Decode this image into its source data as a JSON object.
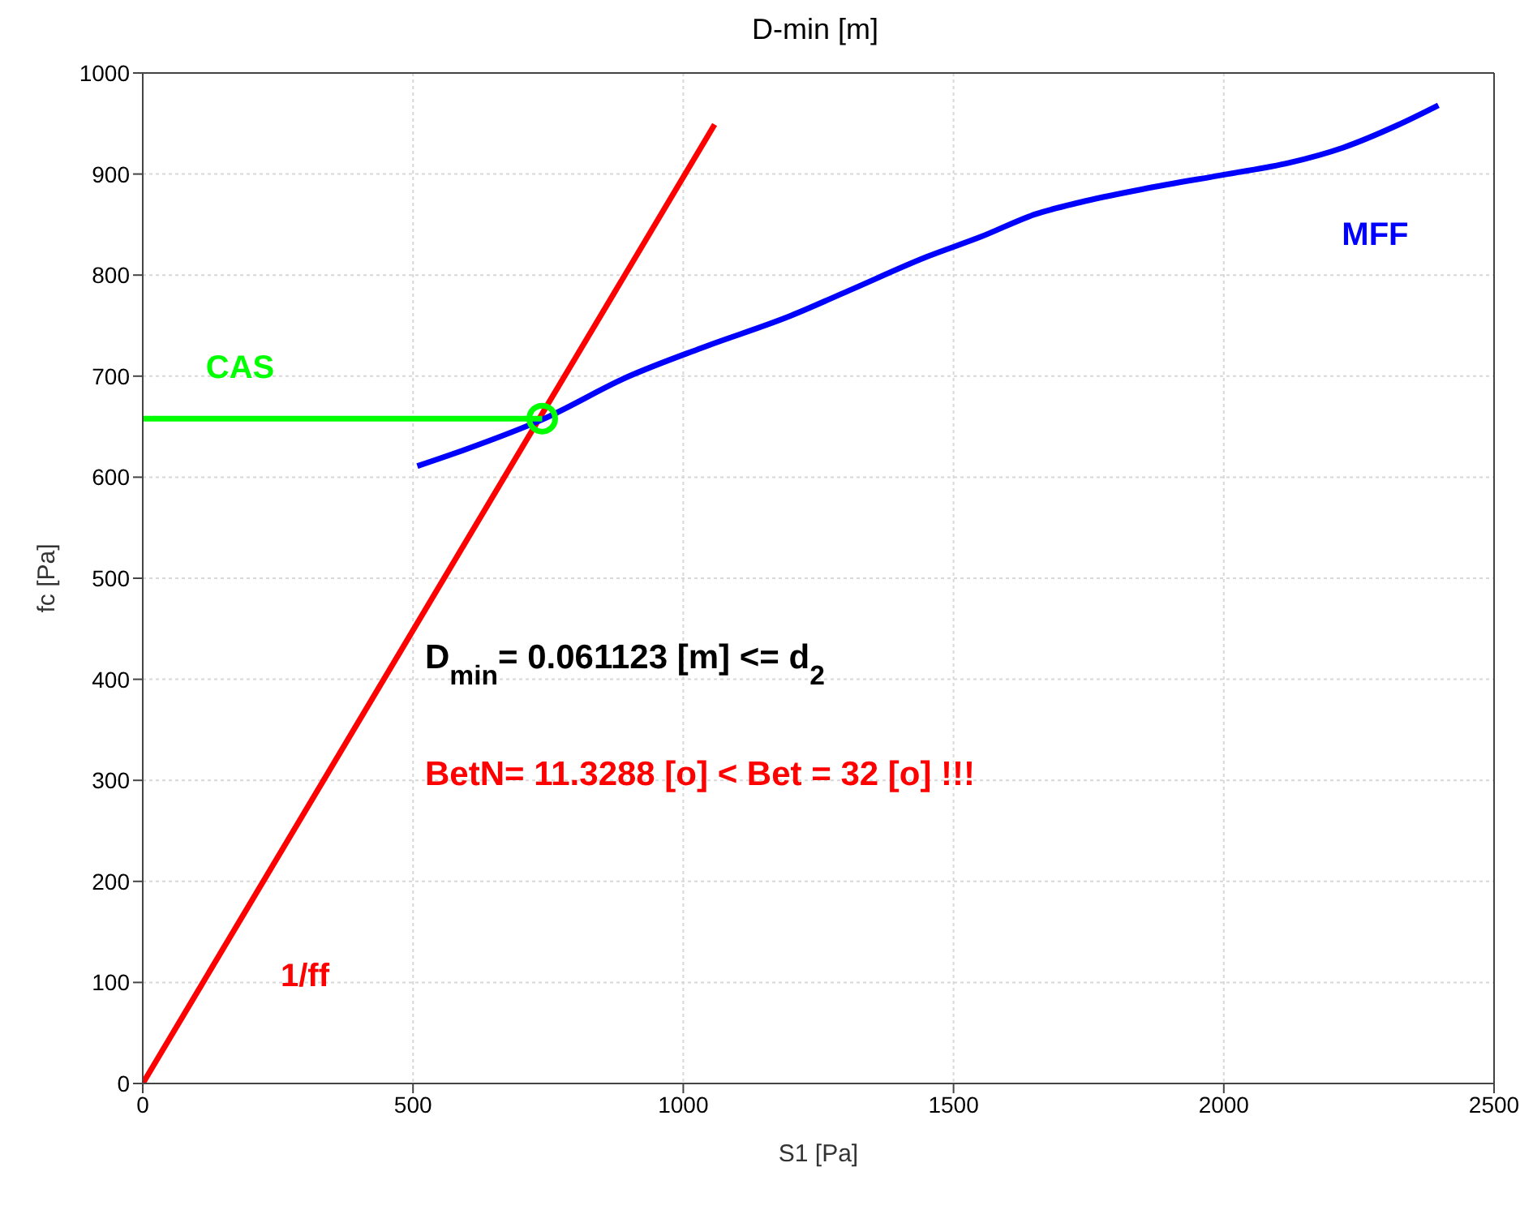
{
  "chart_data": {
    "type": "line",
    "title": "D-min [m]",
    "xlabel": "S1 [Pa]",
    "ylabel": "fc [Pa]",
    "xlim": [
      0,
      2500
    ],
    "xticks": [
      0,
      500,
      1000,
      1500,
      2000,
      2500
    ],
    "ylim": [
      0,
      1000
    ],
    "yticks": [
      0,
      100,
      200,
      300,
      400,
      500,
      600,
      700,
      800,
      900,
      1000
    ],
    "grid": true,
    "marker": "none",
    "series": [
      {
        "name": "1/ff",
        "color": "#ff0000",
        "x": [
          0,
          1058
        ],
        "values": [
          0,
          949
        ]
      },
      {
        "name": "MFF",
        "color": "#0000ff",
        "x": [
          508,
          600,
          739,
          900,
          1034,
          1200,
          1308,
          1450,
          1551,
          1650,
          1734,
          1850,
          2007,
          2120,
          2220,
          2320,
          2397
        ],
        "values": [
          611,
          628,
          657,
          700,
          728,
          760,
          785,
          818,
          838,
          860,
          872,
          885,
          900,
          911,
          926,
          948,
          968
        ]
      },
      {
        "name": "CAS",
        "color": "#00ff00",
        "x": [
          0,
          739
        ],
        "values": [
          658,
          658
        ]
      },
      {
        "type": "scatter",
        "color": "#00ff00",
        "marker": "circle",
        "x": [
          739
        ],
        "values": [
          658
        ]
      }
    ],
    "annotations": [
      "D$_{min}$= 0.061123 [m] <= d$_{2}$",
      "BetN= 11.3288 [o] < Bet = 32 [o] !!!"
    ]
  }
}
